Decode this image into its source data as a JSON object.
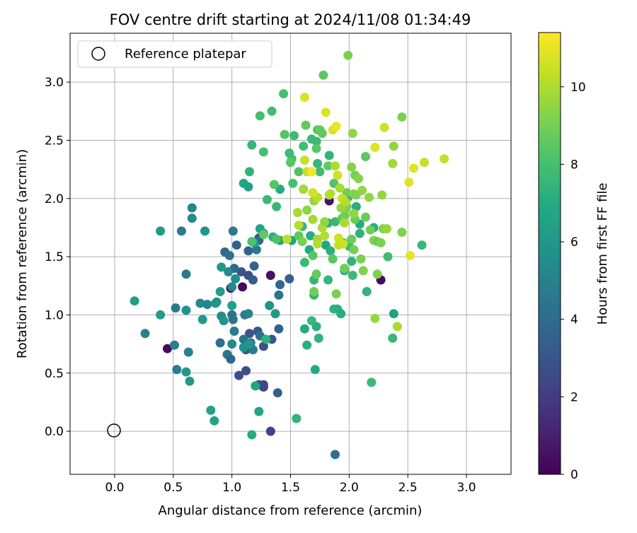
{
  "chart_data": {
    "type": "scatter",
    "title": "FOV centre drift starting at 2024/11/08 01:34:49",
    "xlabel": "Angular distance from reference (arcmin)",
    "ylabel": "Rotation from reference (arcmin)",
    "xlim": [
      -0.38,
      3.38
    ],
    "ylim": [
      -0.37,
      3.42
    ],
    "xticks": [
      "0.0",
      "0.5",
      "1.0",
      "1.5",
      "2.0",
      "2.5",
      "3.0"
    ],
    "yticks": [
      "0.0",
      "0.5",
      "1.0",
      "1.5",
      "2.0",
      "2.5",
      "3.0"
    ],
    "grid": true,
    "legend": {
      "position": "top-left",
      "entries": [
        "Reference platepar"
      ]
    },
    "reference_point": {
      "x": 0.0,
      "y": 0.0
    },
    "colorbar": {
      "label": "Hours from first FF file",
      "range": [
        0,
        11.4
      ],
      "ticks": [
        "0",
        "2",
        "4",
        "6",
        "8",
        "10"
      ],
      "colormap": "viridis"
    },
    "points": [
      [
        0.45,
        0.71,
        0.3
      ],
      [
        0.99,
        1.23,
        0.3
      ],
      [
        1.09,
        1.24,
        0.3
      ],
      [
        1.33,
        1.34,
        0.5
      ],
      [
        2.27,
        1.3,
        0.4
      ],
      [
        1.83,
        1.98,
        0.6
      ],
      [
        1.33,
        0.0,
        2.2
      ],
      [
        1.23,
        0.4,
        2.3
      ],
      [
        1.27,
        0.4,
        2.3
      ],
      [
        1.27,
        0.38,
        2.4
      ],
      [
        1.12,
        0.52,
        2.6
      ],
      [
        1.06,
        0.48,
        2.7
      ],
      [
        1.27,
        0.73,
        2.8
      ],
      [
        1.15,
        0.84,
        3.0
      ],
      [
        1.34,
        0.79,
        3.2
      ],
      [
        1.22,
        0.86,
        3.1
      ],
      [
        1.4,
        0.88,
        3.5
      ],
      [
        1.16,
        0.76,
        3.4
      ],
      [
        1.12,
        0.7,
        3.1
      ],
      [
        1.14,
        1.34,
        2.8
      ],
      [
        1.18,
        1.3,
        3.3
      ],
      [
        1.08,
        1.37,
        2.9
      ],
      [
        1.19,
        1.42,
        3.7
      ],
      [
        1.02,
        1.4,
        3.9
      ],
      [
        1.04,
        1.6,
        3.6
      ],
      [
        1.14,
        1.55,
        3.5
      ],
      [
        1.23,
        1.66,
        2.9
      ],
      [
        1.23,
        1.64,
        3.8
      ],
      [
        1.27,
        1.7,
        4.0
      ],
      [
        1.49,
        1.31,
        3.6
      ],
      [
        1.41,
        1.26,
        3.8
      ],
      [
        1.4,
        1.17,
        4.3
      ],
      [
        1.39,
        0.33,
        3.4
      ],
      [
        1.24,
        0.82,
        4.2
      ],
      [
        1.21,
        1.56,
        4.6
      ],
      [
        0.94,
        1.54,
        3.9
      ],
      [
        0.98,
        1.51,
        4.3
      ],
      [
        1.01,
        1.72,
        4.6
      ],
      [
        1.0,
        1.0,
        4.3
      ],
      [
        1.11,
        1.0,
        4.6
      ],
      [
        0.96,
        0.66,
        4.6
      ],
      [
        0.99,
        0.62,
        3.7
      ],
      [
        0.9,
        0.76,
        4.1
      ],
      [
        1.02,
        0.86,
        4.6
      ],
      [
        1.01,
        0.96,
        4.3
      ],
      [
        1.18,
        0.7,
        4.8
      ],
      [
        1.1,
        0.79,
        4.4
      ],
      [
        0.52,
        1.06,
        4.6
      ],
      [
        0.51,
        0.74,
        4.8
      ],
      [
        0.53,
        0.53,
        4.8
      ],
      [
        0.61,
        1.35,
        4.6
      ],
      [
        0.57,
        1.72,
        4.8
      ],
      [
        0.26,
        0.84,
        5.0
      ],
      [
        0.63,
        0.68,
        4.9
      ],
      [
        0.66,
        1.92,
        5.2
      ],
      [
        0.66,
        1.83,
        5.5
      ],
      [
        0.73,
        1.1,
        5.3
      ],
      [
        0.79,
        1.09,
        5.1
      ],
      [
        1.14,
        1.01,
        5.1
      ],
      [
        0.97,
        1.37,
        5.4
      ],
      [
        1.0,
        1.24,
        5.3
      ],
      [
        1.03,
        1.31,
        5.5
      ],
      [
        0.91,
        0.99,
        5.6
      ],
      [
        0.93,
        0.95,
        5.9
      ],
      [
        1.0,
        0.75,
        5.4
      ],
      [
        0.87,
        1.11,
        5.5
      ],
      [
        0.86,
        1.1,
        5.9
      ],
      [
        0.61,
        1.04,
        5.7
      ],
      [
        0.61,
        0.51,
        6.0
      ],
      [
        0.64,
        0.43,
        6.2
      ],
      [
        0.39,
        1.0,
        6.3
      ],
      [
        0.17,
        1.12,
        6.3
      ],
      [
        0.39,
        1.72,
        6.2
      ],
      [
        0.77,
        1.72,
        5.9
      ],
      [
        0.75,
        0.96,
        6.2
      ],
      [
        0.91,
        1.41,
        6.2
      ],
      [
        0.9,
        1.2,
        6.3
      ],
      [
        1.0,
        1.08,
        6.4
      ],
      [
        1.32,
        1.08,
        5.8
      ],
      [
        1.37,
        1.01,
        6.2
      ],
      [
        1.1,
        0.72,
        5.7
      ],
      [
        1.15,
        0.75,
        6.0
      ],
      [
        1.23,
        0.17,
        6.7
      ],
      [
        0.82,
        0.18,
        6.5
      ],
      [
        0.85,
        0.09,
        6.6
      ],
      [
        1.17,
        -0.03,
        7.0
      ],
      [
        1.2,
        0.39,
        6.7
      ],
      [
        1.19,
        1.62,
        6.2
      ],
      [
        1.1,
        2.13,
        6.6
      ],
      [
        1.14,
        2.1,
        6.5
      ],
      [
        1.15,
        2.23,
        7.4
      ],
      [
        1.17,
        2.46,
        7.5
      ],
      [
        1.29,
        0.79,
        7.3
      ],
      [
        1.41,
        2.08,
        7.0
      ],
      [
        1.51,
        1.64,
        6.6
      ],
      [
        1.41,
        1.64,
        6.4
      ],
      [
        1.24,
        1.74,
        6.7
      ],
      [
        1.35,
        1.67,
        7.3
      ],
      [
        1.38,
        1.93,
        7.6
      ],
      [
        1.55,
        0.11,
        7.4
      ],
      [
        1.62,
        0.88,
        6.9
      ],
      [
        1.64,
        0.74,
        7.1
      ],
      [
        1.7,
        1.17,
        7.4
      ],
      [
        1.7,
        1.3,
        7.5
      ],
      [
        1.71,
        0.53,
        6.9
      ],
      [
        1.72,
        0.9,
        7.1
      ],
      [
        1.74,
        0.8,
        7.4
      ],
      [
        1.68,
        0.95,
        7.6
      ],
      [
        1.6,
        1.76,
        7.5
      ],
      [
        1.62,
        1.45,
        7.7
      ],
      [
        1.67,
        1.68,
        7.1
      ],
      [
        1.73,
        2.3,
        7.5
      ],
      [
        1.66,
        1.56,
        6.9
      ],
      [
        1.8,
        1.6,
        6.8
      ],
      [
        1.82,
        1.79,
        7.1
      ],
      [
        1.83,
        2.37,
        7.4
      ],
      [
        1.84,
        1.55,
        7.2
      ],
      [
        1.82,
        1.3,
        7.5
      ],
      [
        1.87,
        1.05,
        7.3
      ],
      [
        1.9,
        1.05,
        7.2
      ],
      [
        1.93,
        1.01,
        7.0
      ],
      [
        1.88,
        1.8,
        7.6
      ],
      [
        1.96,
        1.38,
        7.2
      ],
      [
        1.99,
        2.01,
        7.3
      ],
      [
        2.0,
        1.59,
        7.6
      ],
      [
        2.02,
        1.46,
        7.4
      ],
      [
        2.06,
        1.93,
        7.1
      ],
      [
        2.03,
        1.34,
        7.7
      ],
      [
        2.09,
        1.7,
        7.3
      ],
      [
        2.09,
        1.78,
        7.0
      ],
      [
        2.15,
        1.2,
        7.4
      ],
      [
        2.21,
        1.75,
        7.2
      ],
      [
        2.19,
        0.42,
        7.7
      ],
      [
        2.33,
        1.5,
        7.8
      ],
      [
        2.38,
        1.01,
        6.5
      ],
      [
        2.37,
        0.8,
        7.6
      ],
      [
        2.62,
        1.6,
        7.6
      ],
      [
        1.88,
        -0.2,
        4.2
      ],
      [
        1.75,
        2.23,
        7.8
      ],
      [
        1.72,
        2.49,
        7.6
      ],
      [
        1.68,
        2.51,
        7.7
      ],
      [
        1.61,
        2.45,
        7.9
      ],
      [
        1.53,
        2.54,
        7.8
      ],
      [
        1.45,
        2.55,
        8.3
      ],
      [
        1.44,
        2.9,
        8.0
      ],
      [
        1.34,
        2.75,
        7.9
      ],
      [
        1.24,
        2.71,
        8.0
      ],
      [
        1.27,
        2.4,
        8.0
      ],
      [
        1.51,
        2.34,
        7.9
      ],
      [
        1.49,
        2.39,
        7.8
      ],
      [
        1.52,
        2.13,
        8.0
      ],
      [
        1.5,
        2.31,
        8.4
      ],
      [
        1.38,
        1.65,
        8.2
      ],
      [
        1.27,
        1.69,
        8.6
      ],
      [
        1.17,
        1.63,
        8.1
      ],
      [
        1.3,
        1.99,
        7.7
      ],
      [
        1.36,
        2.12,
        8.3
      ],
      [
        1.57,
        2.23,
        8.2
      ],
      [
        1.57,
        1.68,
        8.6
      ],
      [
        1.61,
        2.08,
        8.3
      ],
      [
        1.63,
        2.63,
        8.6
      ],
      [
        1.78,
        3.06,
        8.5
      ],
      [
        1.73,
        2.59,
        8.2
      ],
      [
        1.75,
        2.59,
        8.7
      ],
      [
        1.77,
        2.56,
        8.6
      ],
      [
        1.72,
        2.43,
        8.4
      ],
      [
        1.82,
        2.28,
        8.6
      ],
      [
        1.87,
        2.13,
        8.3
      ],
      [
        1.69,
        1.51,
        8.4
      ],
      [
        1.72,
        1.35,
        8.7
      ],
      [
        1.7,
        1.2,
        8.9
      ],
      [
        1.86,
        1.48,
        8.5
      ],
      [
        1.89,
        1.18,
        9.1
      ],
      [
        1.94,
        1.83,
        8.6
      ],
      [
        1.96,
        1.85,
        8.9
      ],
      [
        1.98,
        1.93,
        8.8
      ],
      [
        1.97,
        1.91,
        9.1
      ],
      [
        2.02,
        1.65,
        8.8
      ],
      [
        2.04,
        1.56,
        9.0
      ],
      [
        1.95,
        1.62,
        8.2
      ],
      [
        1.96,
        1.4,
        8.9
      ],
      [
        2.05,
        1.82,
        8.8
      ],
      [
        2.1,
        1.48,
        9.1
      ],
      [
        2.14,
        1.84,
        8.8
      ],
      [
        2.18,
        1.73,
        8.9
      ],
      [
        2.12,
        1.38,
        9.2
      ],
      [
        2.24,
        1.35,
        9.2
      ],
      [
        2.14,
        2.36,
        8.5
      ],
      [
        1.99,
        3.23,
        9.1
      ],
      [
        1.98,
        2.05,
        8.9
      ],
      [
        2.02,
        2.27,
        9.3
      ],
      [
        2.04,
        2.04,
        9.4
      ],
      [
        2.03,
        2.56,
        9.5
      ],
      [
        2.06,
        2.03,
        9.2
      ],
      [
        2.05,
        2.2,
        9.0
      ],
      [
        2.08,
        2.17,
        9.3
      ],
      [
        2.11,
        2.07,
        9.5
      ],
      [
        2.04,
        1.87,
        9.5
      ],
      [
        2.17,
        2.01,
        9.5
      ],
      [
        2.21,
        1.64,
        9.3
      ],
      [
        2.24,
        1.63,
        8.7
      ],
      [
        2.27,
        1.62,
        9.1
      ],
      [
        2.28,
        2.03,
        9.6
      ],
      [
        2.29,
        1.74,
        9.2
      ],
      [
        2.32,
        1.74,
        9.6
      ],
      [
        2.38,
        2.45,
        9.5
      ],
      [
        2.37,
        2.3,
        9.8
      ],
      [
        2.45,
        2.7,
        9.1
      ],
      [
        2.45,
        1.71,
        9.2
      ],
      [
        2.22,
        0.97,
        9.6
      ],
      [
        2.41,
        0.9,
        9.9
      ],
      [
        2.64,
        2.31,
        10.4
      ],
      [
        2.81,
        2.34,
        10.4
      ],
      [
        2.3,
        2.61,
        10.5
      ],
      [
        2.22,
        2.44,
        10.8
      ],
      [
        2.55,
        2.26,
        10.9
      ],
      [
        2.51,
        2.14,
        10.9
      ],
      [
        2.52,
        1.51,
        11.0
      ],
      [
        1.6,
        1.63,
        9.1
      ],
      [
        1.56,
        1.88,
        9.9
      ],
      [
        1.62,
        2.33,
        10.4
      ],
      [
        1.64,
        1.9,
        9.4
      ],
      [
        1.64,
        2.23,
        10.4
      ],
      [
        1.68,
        2.23,
        11.2
      ],
      [
        1.69,
        1.82,
        9.8
      ],
      [
        1.7,
        1.98,
        9.6
      ],
      [
        1.73,
        1.65,
        9.8
      ],
      [
        1.73,
        1.61,
        10.1
      ],
      [
        1.77,
        1.75,
        10.0
      ],
      [
        1.79,
        1.8,
        9.5
      ],
      [
        1.79,
        1.68,
        10.1
      ],
      [
        1.8,
        2.74,
        10.8
      ],
      [
        1.83,
        2.03,
        10.0
      ],
      [
        1.84,
        2.04,
        10.1
      ],
      [
        1.86,
        2.59,
        10.8
      ],
      [
        1.88,
        2.28,
        10.0
      ],
      [
        1.89,
        2.62,
        11.0
      ],
      [
        1.9,
        2.2,
        10.6
      ],
      [
        1.91,
        1.6,
        10.3
      ],
      [
        1.91,
        1.66,
        10.6
      ],
      [
        1.92,
        2.09,
        9.9
      ],
      [
        1.93,
        1.92,
        9.6
      ],
      [
        1.94,
        2.0,
        10.4
      ],
      [
        1.95,
        1.61,
        10.5
      ],
      [
        1.96,
        1.79,
        9.9
      ],
      [
        1.97,
        1.97,
        10.1
      ],
      [
        1.62,
        2.87,
        10.8
      ],
      [
        1.57,
        1.77,
        10.1
      ],
      [
        1.47,
        1.65,
        10.2
      ],
      [
        1.61,
        2.08,
        9.8
      ],
      [
        1.73,
        2.01,
        10.2
      ],
      [
        1.69,
        2.05,
        10.6
      ]
    ]
  }
}
